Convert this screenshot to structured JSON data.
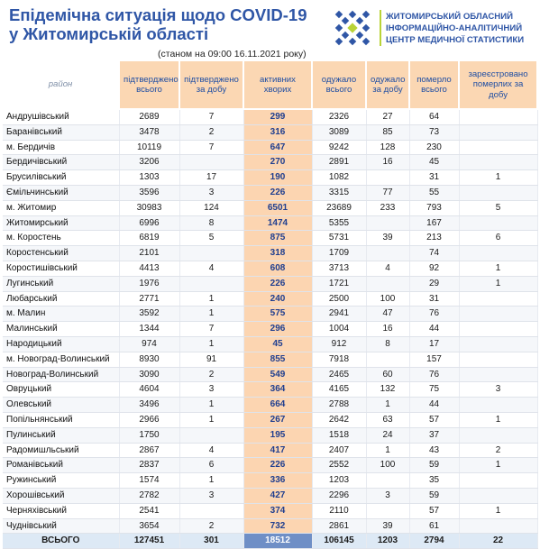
{
  "header": {
    "title_line1": "Епідемічна ситуація щодо COVID-19",
    "title_line2": "у Житомирській області",
    "subtitle": "(станом на 09:00 16.11.2021 року)",
    "org_line1": "ЖИТОМИРСЬКИЙ ОБЛАСНИЙ",
    "org_line2": "ІНФОРМАЦІЙНО-АНАЛІТИЧНИЙ",
    "org_line3": "ЦЕНТР МЕДИЧНОЇ СТАТИСТИКИ"
  },
  "columns": {
    "district": "район",
    "confirmed_total": "підтверджено всього",
    "confirmed_day": "підтверджено за добу",
    "active": "активних хворих",
    "recovered_total": "одужало всього",
    "recovered_day": "одужало за добу",
    "deaths_total": "померло всього",
    "deaths_day": "зареєстровано померлих за добу"
  },
  "rows": [
    [
      "Андрушівський",
      "2689",
      "7",
      "299",
      "2326",
      "27",
      "64",
      ""
    ],
    [
      "Баранівський",
      "3478",
      "2",
      "316",
      "3089",
      "85",
      "73",
      ""
    ],
    [
      "м. Бердичів",
      "10119",
      "7",
      "647",
      "9242",
      "128",
      "230",
      ""
    ],
    [
      "Бердичівський",
      "3206",
      "",
      "270",
      "2891",
      "16",
      "45",
      ""
    ],
    [
      "Брусилівський",
      "1303",
      "17",
      "190",
      "1082",
      "",
      "31",
      "1"
    ],
    [
      "Ємільчинський",
      "3596",
      "3",
      "226",
      "3315",
      "77",
      "55",
      ""
    ],
    [
      "м. Житомир",
      "30983",
      "124",
      "6501",
      "23689",
      "233",
      "793",
      "5"
    ],
    [
      "Житомирський",
      "6996",
      "8",
      "1474",
      "5355",
      "",
      "167",
      ""
    ],
    [
      "м. Коростень",
      "6819",
      "5",
      "875",
      "5731",
      "39",
      "213",
      "6"
    ],
    [
      "Коростенський",
      "2101",
      "",
      "318",
      "1709",
      "",
      "74",
      ""
    ],
    [
      "Коростишівський",
      "4413",
      "4",
      "608",
      "3713",
      "4",
      "92",
      "1"
    ],
    [
      "Лугинський",
      "1976",
      "",
      "226",
      "1721",
      "",
      "29",
      "1"
    ],
    [
      "Любарський",
      "2771",
      "1",
      "240",
      "2500",
      "100",
      "31",
      ""
    ],
    [
      "м. Малин",
      "3592",
      "1",
      "575",
      "2941",
      "47",
      "76",
      ""
    ],
    [
      "Малинський",
      "1344",
      "7",
      "296",
      "1004",
      "16",
      "44",
      ""
    ],
    [
      "Народицький",
      "974",
      "1",
      "45",
      "912",
      "8",
      "17",
      ""
    ],
    [
      "м. Новоград-Волинський",
      "8930",
      "91",
      "855",
      "7918",
      "",
      "157",
      ""
    ],
    [
      "Новоград-Волинський",
      "3090",
      "2",
      "549",
      "2465",
      "60",
      "76",
      ""
    ],
    [
      "Овруцький",
      "4604",
      "3",
      "364",
      "4165",
      "132",
      "75",
      "3"
    ],
    [
      "Олевський",
      "3496",
      "1",
      "664",
      "2788",
      "1",
      "44",
      ""
    ],
    [
      "Попільнянський",
      "2966",
      "1",
      "267",
      "2642",
      "63",
      "57",
      "1"
    ],
    [
      "Пулинський",
      "1750",
      "",
      "195",
      "1518",
      "24",
      "37",
      ""
    ],
    [
      "Радомишльський",
      "2867",
      "4",
      "417",
      "2407",
      "1",
      "43",
      "2"
    ],
    [
      "Романівський",
      "2837",
      "6",
      "226",
      "2552",
      "100",
      "59",
      "1"
    ],
    [
      "Ружинський",
      "1574",
      "1",
      "336",
      "1203",
      "",
      "35",
      ""
    ],
    [
      "Хорошівський",
      "2782",
      "3",
      "427",
      "2296",
      "3",
      "59",
      ""
    ],
    [
      "Черняхівський",
      "2541",
      "",
      "374",
      "2110",
      "",
      "57",
      "1"
    ],
    [
      "Чуднівський",
      "3654",
      "2",
      "732",
      "2861",
      "39",
      "61",
      ""
    ]
  ],
  "totals": [
    "ВСЬОГО",
    "127451",
    "301",
    "18512",
    "106145",
    "1203",
    "2794",
    "22"
  ],
  "colors": {
    "title": "#2f56a6",
    "header_bg": "#fbd7b3",
    "active_bg": "#fcd5b1",
    "total_active_bg": "#6f8fc6",
    "logo_green": "#b9d337"
  }
}
